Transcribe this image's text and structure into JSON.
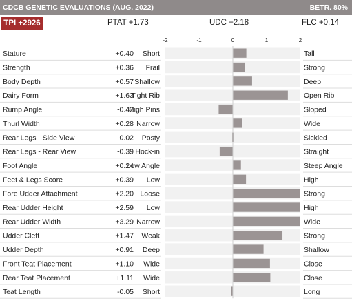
{
  "header": {
    "title": "CDCB GENETIC EVALUATIONS (AUG. 2022)",
    "reliability": "BETR. 80%"
  },
  "summary": {
    "tpi": "TPI +2926",
    "ptat": "PTAT +1.73",
    "udc": "UDC +2.18",
    "flc": "FLC +0.14"
  },
  "colors": {
    "header_bg": "#8f8a8a",
    "tpi_badge": "#a52d2d",
    "bar": "#9b9494"
  },
  "chart_data": {
    "type": "bar",
    "orientation": "horizontal",
    "xlim": [
      -2,
      2
    ],
    "ticks": [
      "-2",
      "-1",
      "0",
      "1",
      "2"
    ],
    "tick_values": [
      -2,
      -1,
      0,
      1,
      2
    ],
    "traits": [
      {
        "name": "Stature",
        "value": 0.4,
        "label": "+0.40",
        "low": "Short",
        "high": "Tall"
      },
      {
        "name": "Strength",
        "value": 0.36,
        "label": "+0.36",
        "low": "Frail",
        "high": "Strong"
      },
      {
        "name": "Body Depth",
        "value": 0.57,
        "label": "+0.57",
        "low": "Shallow",
        "high": "Deep"
      },
      {
        "name": "Dairy Form",
        "value": 1.63,
        "label": "+1.63",
        "low": "Tight Rib",
        "high": "Open Rib"
      },
      {
        "name": "Rump Angle",
        "value": -0.42,
        "label": "-0.42",
        "low": "High Pins",
        "high": "Sloped"
      },
      {
        "name": "Thurl Width",
        "value": 0.28,
        "label": "+0.28",
        "low": "Narrow",
        "high": "Wide"
      },
      {
        "name": "Rear Legs - Side View",
        "value": -0.02,
        "label": "-0.02",
        "low": "Posty",
        "high": "Sickled"
      },
      {
        "name": "Rear Legs - Rear View",
        "value": -0.39,
        "label": "-0.39",
        "low": "Hock-in",
        "high": "Straight"
      },
      {
        "name": "Foot Angle",
        "value": 0.24,
        "label": "+0.24",
        "low": "Low Angle",
        "high": "Steep Angle"
      },
      {
        "name": "Feet & Legs Score",
        "value": 0.39,
        "label": "+0.39",
        "low": "Low",
        "high": "High"
      },
      {
        "name": "Fore Udder Attachment",
        "value": 2.2,
        "label": "+2.20",
        "low": "Loose",
        "high": "Strong"
      },
      {
        "name": "Rear Udder Height",
        "value": 2.59,
        "label": "+2.59",
        "low": "Low",
        "high": "High"
      },
      {
        "name": "Rear Udder Width",
        "value": 3.29,
        "label": "+3.29",
        "low": "Narrow",
        "high": "Wide"
      },
      {
        "name": "Udder Cleft",
        "value": 1.47,
        "label": "+1.47",
        "low": "Weak",
        "high": "Strong"
      },
      {
        "name": "Udder Depth",
        "value": 0.91,
        "label": "+0.91",
        "low": "Deep",
        "high": "Shallow"
      },
      {
        "name": "Front Teat Placement",
        "value": 1.1,
        "label": "+1.10",
        "low": "Wide",
        "high": "Close"
      },
      {
        "name": "Rear Teat Placement",
        "value": 1.11,
        "label": "+1.11",
        "low": "Wide",
        "high": "Close"
      },
      {
        "name": "Teat Length",
        "value": -0.05,
        "label": "-0.05",
        "low": "Short",
        "high": "Long"
      }
    ]
  }
}
